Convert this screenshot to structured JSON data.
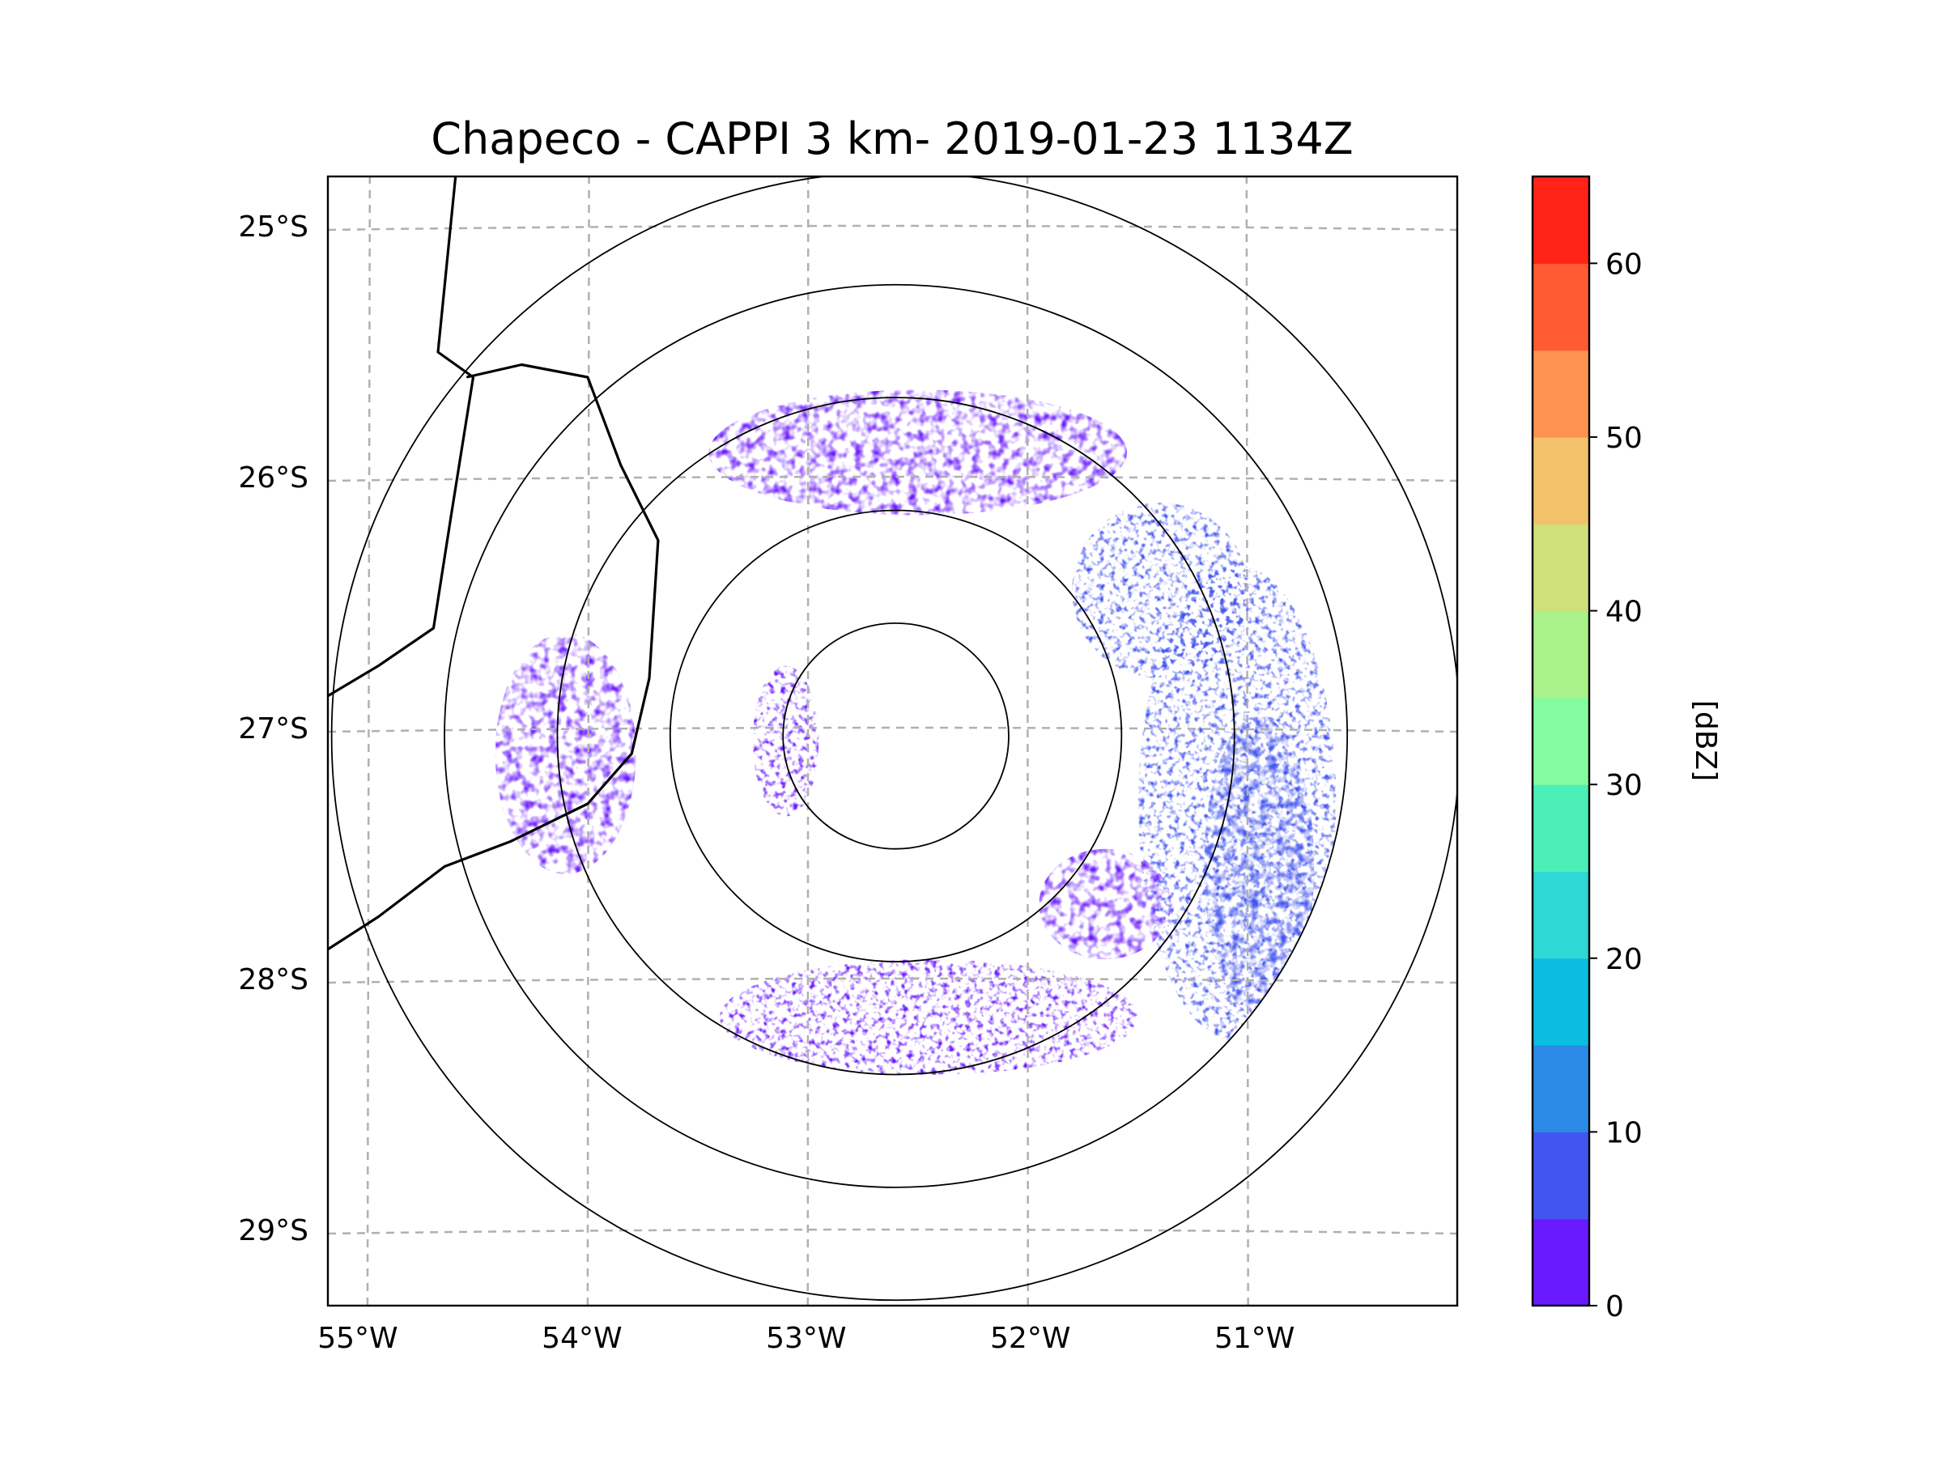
{
  "title": "Chapeco - CAPPI 3 km- 2019-01-23 1134Z",
  "map": {
    "lon_range": [
      -55.18,
      -50.05
    ],
    "lat_range": [
      -29.3,
      -24.8
    ],
    "lon_ticks": [
      {
        "value": -55,
        "label": "55°W"
      },
      {
        "value": -54,
        "label": "54°W"
      },
      {
        "value": -53,
        "label": "53°W"
      },
      {
        "value": -52,
        "label": "52°W"
      },
      {
        "value": -51,
        "label": "51°W"
      }
    ],
    "lat_ticks": [
      {
        "value": -25,
        "label": "25°S"
      },
      {
        "value": -26,
        "label": "26°S"
      },
      {
        "value": -27,
        "label": "27°S"
      },
      {
        "value": -28,
        "label": "28°S"
      },
      {
        "value": -29,
        "label": "29°S"
      }
    ],
    "radar_site": {
      "lon": -52.6,
      "lat": -27.03
    },
    "range_rings_km": [
      50,
      100,
      150,
      200,
      250
    ],
    "data_coverage_km": 200,
    "gridlines": true
  },
  "colorbar": {
    "label": "[dBZ]",
    "min": 0,
    "max": 65,
    "step": 5,
    "tick_values": [
      0,
      10,
      20,
      30,
      40,
      50,
      60
    ],
    "tick_labels": [
      "0",
      "10",
      "20",
      "30",
      "40",
      "50",
      "60"
    ],
    "colors": [
      "#6a1aff",
      "#4355f0",
      "#2b8ae6",
      "#0bbde0",
      "#2ed8d4",
      "#4cefb8",
      "#84fca0",
      "#a9f38a",
      "#cfe07a",
      "#f2c26a",
      "#ff9250",
      "#ff5a32",
      "#ff2318"
    ]
  },
  "chart_data": {
    "type": "heatmap",
    "title": "Chapeco - CAPPI 3 km- 2019-01-23 1134Z",
    "xlabel": "",
    "ylabel": "",
    "colorbar_label": "[dBZ]",
    "value_range": [
      0,
      65
    ],
    "xlim": [
      -55.18,
      -50.05
    ],
    "ylim": [
      -29.3,
      -24.8
    ],
    "echo_regions": [
      {
        "name": "west-band",
        "lon": -54.1,
        "lat": -27.1,
        "rlon": 0.32,
        "rlat": 0.48,
        "dbz": 4
      },
      {
        "name": "east-arc",
        "lon": -51.05,
        "lat": -27.3,
        "rlon": 0.45,
        "rlat": 0.95,
        "dbz": 6
      },
      {
        "name": "east-arc-core",
        "lon": -50.95,
        "lat": -27.55,
        "rlon": 0.25,
        "rlat": 0.6,
        "dbz": 9
      },
      {
        "name": "south-band",
        "lon": -52.45,
        "lat": -28.15,
        "rlon": 0.95,
        "rlat": 0.23,
        "dbz": 3
      },
      {
        "name": "southeast-cluster",
        "lon": -51.65,
        "lat": -27.7,
        "rlon": 0.3,
        "rlat": 0.22,
        "dbz": 4
      },
      {
        "name": "inner-west-arc",
        "lon": -53.1,
        "lat": -27.05,
        "rlon": 0.15,
        "rlat": 0.3,
        "dbz": 3
      },
      {
        "name": "north-scatter",
        "lon": -52.5,
        "lat": -25.9,
        "rlon": 0.95,
        "rlat": 0.25,
        "dbz": 4
      },
      {
        "name": "northeast-cluster",
        "lon": -51.4,
        "lat": -26.45,
        "rlon": 0.4,
        "rlat": 0.35,
        "dbz": 5
      }
    ]
  },
  "borders": [
    {
      "name": "argentina-paraguay-brazil",
      "points": [
        [
          -54.6,
          -24.8
        ],
        [
          -54.68,
          -25.5
        ],
        [
          -54.52,
          -25.6
        ],
        [
          -54.62,
          -26.15
        ],
        [
          -54.7,
          -26.6
        ],
        [
          -54.95,
          -26.75
        ],
        [
          -55.18,
          -26.87
        ]
      ]
    },
    {
      "name": "argentina-santa-catarina",
      "points": [
        [
          -54.55,
          -25.6
        ],
        [
          -54.3,
          -25.55
        ],
        [
          -54.0,
          -25.6
        ],
        [
          -53.85,
          -25.95
        ],
        [
          -53.68,
          -26.25
        ],
        [
          -53.72,
          -26.8
        ],
        [
          -53.8,
          -27.1
        ],
        [
          -54.0,
          -27.3
        ],
        [
          -54.35,
          -27.45
        ],
        [
          -54.65,
          -27.55
        ],
        [
          -54.95,
          -27.75
        ],
        [
          -55.18,
          -27.88
        ]
      ]
    }
  ]
}
